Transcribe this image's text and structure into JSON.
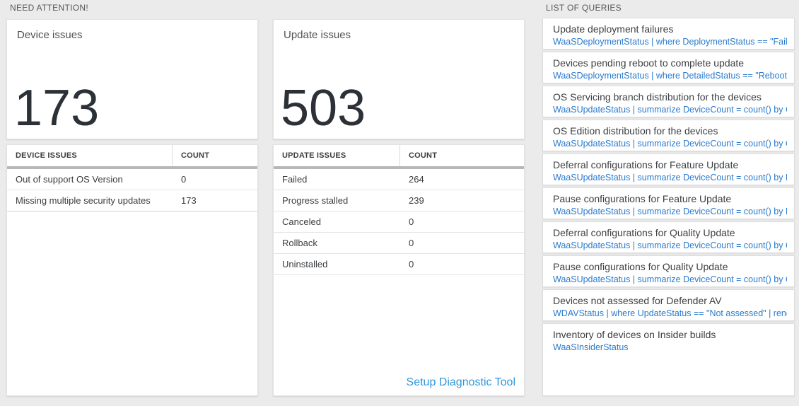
{
  "colors": {
    "page_background": "#ebebeb",
    "big_number_text": "#2b3137",
    "query_code_blue": "#2a7ace",
    "setup_link_blue": "#3296da",
    "table_header_bar": "#b5b7b9"
  },
  "need_attention": {
    "label": "NEED ATTENTION!",
    "device_card": {
      "title": "Device issues",
      "value": "173",
      "table": {
        "columns": [
          "DEVICE ISSUES",
          "COUNT"
        ],
        "rows": [
          [
            "Out of support OS Version",
            "0"
          ],
          [
            "Missing multiple security updates",
            "173"
          ]
        ]
      }
    },
    "update_card": {
      "title": "Update issues",
      "value": "503",
      "table": {
        "columns": [
          "UPDATE ISSUES",
          "COUNT"
        ],
        "rows": [
          [
            "Failed",
            "264"
          ],
          [
            "Progress stalled",
            "239"
          ],
          [
            "Canceled",
            "0"
          ],
          [
            "Rollback",
            "0"
          ],
          [
            "Uninstalled",
            "0"
          ]
        ]
      },
      "footer_link": "Setup Diagnostic Tool"
    }
  },
  "queries": {
    "label": "LIST OF QUERIES",
    "items": [
      {
        "title": "Update deployment failures",
        "query": "WaaSDeploymentStatus | where DeploymentStatus == \"Failed\" |..."
      },
      {
        "title": "Devices pending reboot to complete update",
        "query": "WaaSDeploymentStatus | where DetailedStatus == \"Reboot pend..."
      },
      {
        "title": "OS Servicing branch distribution for the devices",
        "query": "WaaSUpdateStatus | summarize DeviceCount = count() by OSSer..."
      },
      {
        "title": "OS Edition distribution for the devices",
        "query": "WaaSUpdateStatus | summarize DeviceCount = count() by OSEdit..."
      },
      {
        "title": "Deferral configurations for Feature Update",
        "query": "WaaSUpdateStatus | summarize DeviceCount = count() by Featur..."
      },
      {
        "title": "Pause configurations for Feature Update",
        "query": "WaaSUpdateStatus | summarize DeviceCount = count() by Featur..."
      },
      {
        "title": "Deferral configurations for Quality Update",
        "query": "WaaSUpdateStatus | summarize DeviceCount = count() by Qualit..."
      },
      {
        "title": "Pause configurations for Quality Update",
        "query": "WaaSUpdateStatus | summarize DeviceCount = count() by Qualit..."
      },
      {
        "title": "Devices not assessed for Defender AV",
        "query": "WDAVStatus | where UpdateStatus == \"Not assessed\" | render ta..."
      },
      {
        "title": "Inventory of devices on Insider builds",
        "query": "WaaSInsiderStatus"
      }
    ]
  }
}
